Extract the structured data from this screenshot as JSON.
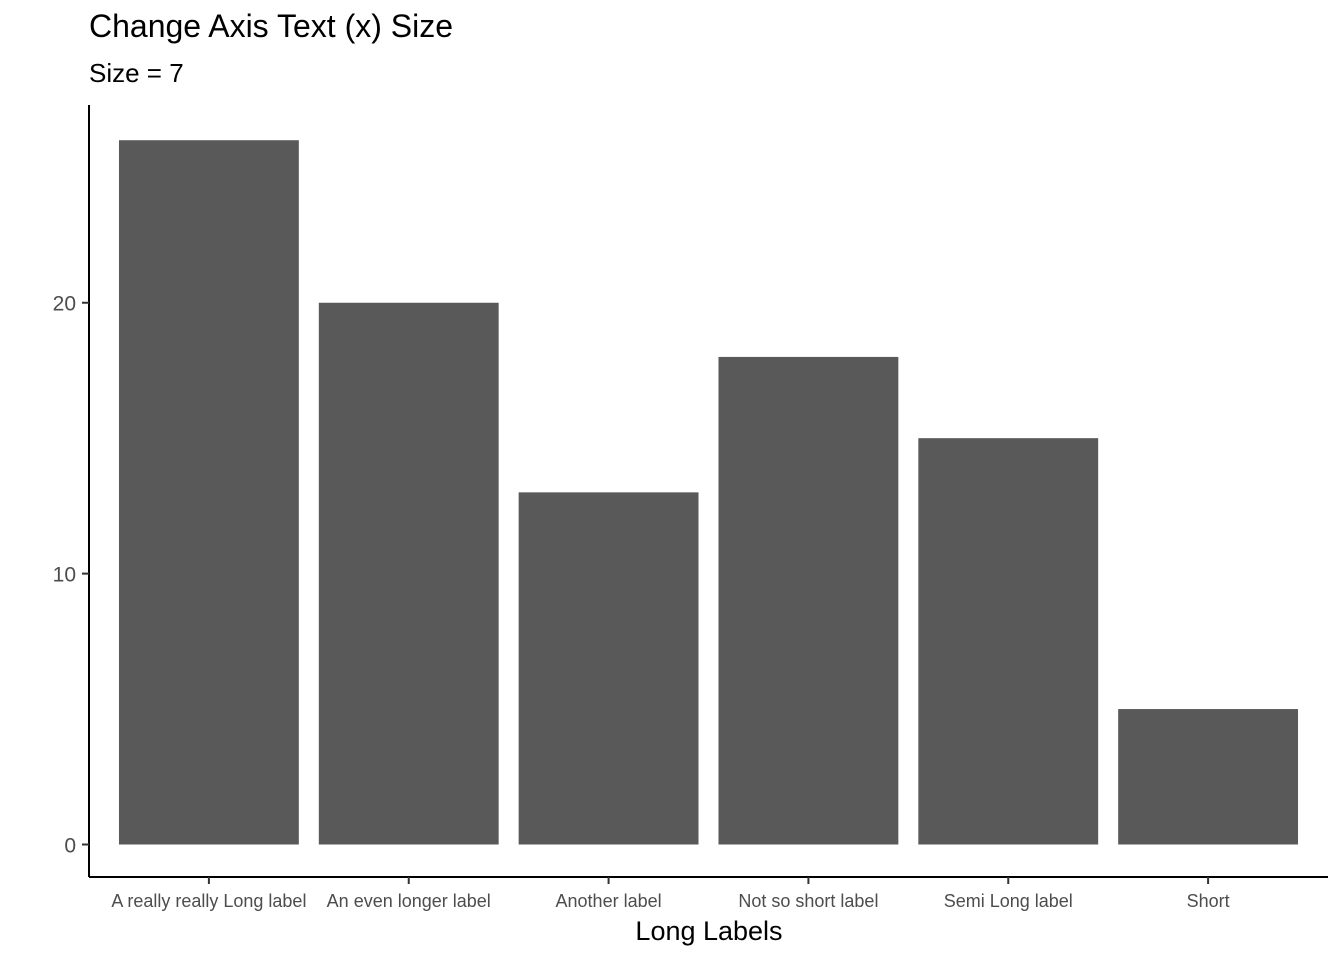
{
  "chart_data": {
    "type": "bar",
    "title": "Change Axis Text (x) Size",
    "subtitle": "Size = 7",
    "xlabel": "Long Labels",
    "ylabel": "",
    "categories": [
      "A really really Long label",
      "An even longer label",
      "Another label",
      "Not so short label",
      "Semi Long label",
      "Short"
    ],
    "values": [
      26,
      20,
      13,
      18,
      15,
      5
    ],
    "ylim": [
      -1.2,
      27.3
    ],
    "yticks": [
      0,
      10,
      20
    ],
    "bar_color": "#595959",
    "grid": false,
    "legend": "none"
  }
}
